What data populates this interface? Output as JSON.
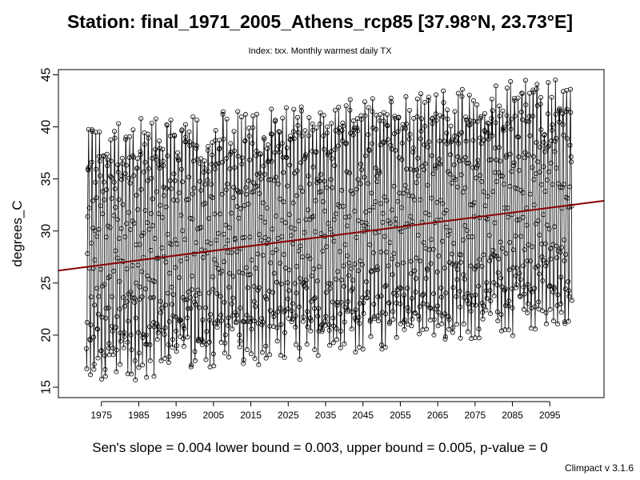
{
  "title": "Station: final_1971_2005_Athens_rcp85 [37.98°N, 23.73°E]",
  "subtitle": "Index: txx. Monthly warmest daily TX",
  "footer": "Sen's slope = 0.004   lower bound = 0.003,   upper bound = 0.005,   p-value = 0",
  "version": "Climpact v 3.1.6",
  "chart_data": {
    "type": "line",
    "title": "Station: final_1971_2005_Athens_rcp85 [37.98°N, 23.73°E]",
    "subtitle": "Index: txx. Monthly warmest daily TX",
    "xlabel": "",
    "ylabel": "degrees_C",
    "xlim": [
      1963.5,
      2109.5
    ],
    "ylim": [
      14,
      45.5
    ],
    "x_ticks": [
      "1975",
      "1985",
      "1995",
      "2005",
      "2015",
      "2025",
      "2035",
      "2045",
      "2055",
      "2065",
      "2075",
      "2085",
      "2095"
    ],
    "y_ticks": [
      "15",
      "20",
      "25",
      "30",
      "35",
      "40",
      "45"
    ],
    "series": [
      {
        "style": "monthly line with open circles",
        "start_year": 1971,
        "end_year": 2100,
        "seasonal_min": {
          "x": [
            1971,
            2100
          ],
          "y": [
            17.5,
            23.0
          ]
        },
        "seasonal_max": {
          "x": [
            1971,
            2100
          ],
          "y": [
            38.0,
            42.5
          ]
        }
      }
    ],
    "trend_line": {
      "x": [
        1963.5,
        2109.5
      ],
      "y": [
        26.2,
        32.9
      ],
      "color": "#8b0000"
    },
    "sens_slope": 0.004,
    "lower_bound": 0.003,
    "upper_bound": 0.005,
    "p_value": 0,
    "grid": false,
    "colors": {
      "series": "#000000",
      "trend": "#8b0000"
    }
  }
}
